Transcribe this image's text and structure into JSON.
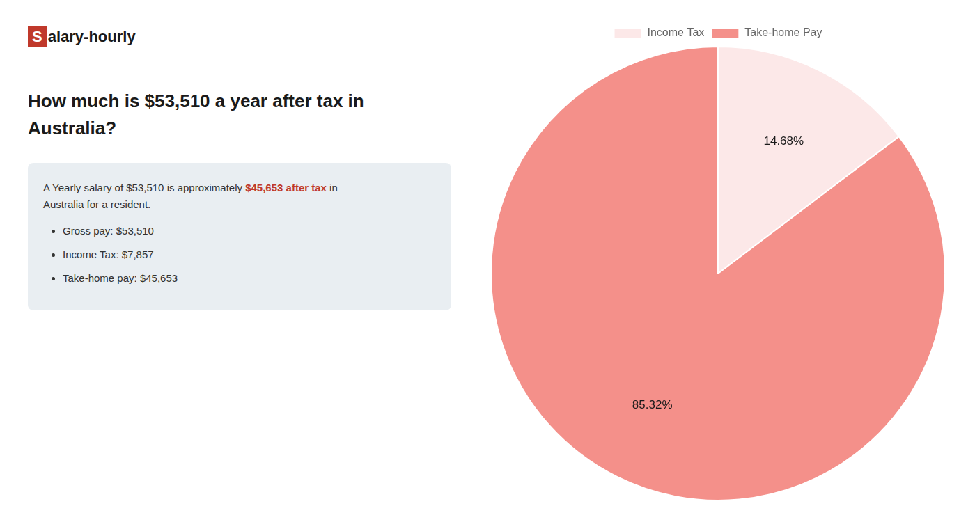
{
  "chart_data": {
    "type": "pie",
    "title": [
      "How much is $53,510 a year after tax in",
      "Australia?"
    ],
    "annotations": [
      {
        "text": "S",
        "color": "#c0392b"
      },
      {
        "text": "alary-hourly"
      },
      {
        "text": "A Yearly salary of $53,510 is approximately "
      },
      {
        "text": "$45,653 after tax",
        "color": "#c0392b"
      },
      {
        "text": " in"
      },
      {
        "text": "Australia for a resident."
      },
      {
        "text": "Gross pay: $53,510"
      },
      {
        "text": "Income Tax: $7,857"
      },
      {
        "text": "Take-home pay: $45,653"
      }
    ],
    "categories": [
      "Income Tax",
      "Take-home Pay"
    ],
    "values": [
      14.68,
      85.32
    ],
    "value_labels": [
      "14.68%",
      "85.32%"
    ],
    "colors": [
      "#fce8e8",
      "#f4908a"
    ],
    "data_labels": true,
    "legend": "top"
  }
}
